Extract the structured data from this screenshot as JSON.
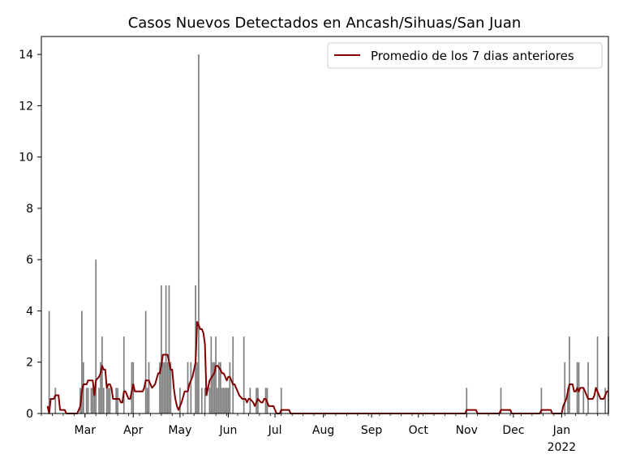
{
  "chart_data": {
    "type": "bar",
    "title": "Casos Nuevos Detectados en Ancash/Sihuas/San Juan",
    "xlabel": "",
    "ylabel": "",
    "x_range": [
      "2021-02-01",
      "2022-01-31"
    ],
    "ylim": [
      0,
      14.7
    ],
    "yticks": [
      0,
      2,
      4,
      6,
      8,
      10,
      12,
      14
    ],
    "xticks": [
      {
        "date": "2021-03-01",
        "label": "Mar"
      },
      {
        "date": "2021-04-01",
        "label": "Apr"
      },
      {
        "date": "2021-05-01",
        "label": "May"
      },
      {
        "date": "2021-06-01",
        "label": "Jun"
      },
      {
        "date": "2021-07-01",
        "label": "Jul"
      },
      {
        "date": "2021-08-01",
        "label": "Aug"
      },
      {
        "date": "2021-09-01",
        "label": "Sep"
      },
      {
        "date": "2021-10-01",
        "label": "Oct"
      },
      {
        "date": "2021-11-01",
        "label": "Nov"
      },
      {
        "date": "2021-12-01",
        "label": "Dec"
      },
      {
        "date": "2022-01-01",
        "label": "Jan",
        "sublabel": "2022"
      }
    ],
    "bar_color": "#808080",
    "bars": [
      [
        "2021-02-06",
        4
      ],
      [
        "2021-02-10",
        1
      ],
      [
        "2021-02-26",
        1
      ],
      [
        "2021-02-27",
        4
      ],
      [
        "2021-02-28",
        2
      ],
      [
        "2021-03-02",
        1
      ],
      [
        "2021-03-03",
        1
      ],
      [
        "2021-03-05",
        1
      ],
      [
        "2021-03-06",
        1
      ],
      [
        "2021-03-07",
        1
      ],
      [
        "2021-03-08",
        6
      ],
      [
        "2021-03-10",
        1
      ],
      [
        "2021-03-11",
        2
      ],
      [
        "2021-03-12",
        3
      ],
      [
        "2021-03-13",
        1
      ],
      [
        "2021-03-15",
        1
      ],
      [
        "2021-03-16",
        1
      ],
      [
        "2021-03-17",
        1
      ],
      [
        "2021-03-21",
        1
      ],
      [
        "2021-03-22",
        1
      ],
      [
        "2021-03-26",
        3
      ],
      [
        "2021-03-31",
        2
      ],
      [
        "2021-04-01",
        2
      ],
      [
        "2021-04-09",
        4
      ],
      [
        "2021-04-10",
        1
      ],
      [
        "2021-04-11",
        2
      ],
      [
        "2021-04-18",
        2
      ],
      [
        "2021-04-19",
        5
      ],
      [
        "2021-04-20",
        2
      ],
      [
        "2021-04-21",
        2
      ],
      [
        "2021-04-22",
        5
      ],
      [
        "2021-04-23",
        2
      ],
      [
        "2021-04-24",
        5
      ],
      [
        "2021-04-25",
        2
      ],
      [
        "2021-05-01",
        1
      ],
      [
        "2021-05-06",
        2
      ],
      [
        "2021-05-08",
        2
      ],
      [
        "2021-05-11",
        5
      ],
      [
        "2021-05-12",
        2
      ],
      [
        "2021-05-13",
        14
      ],
      [
        "2021-05-15",
        1
      ],
      [
        "2021-05-17",
        1
      ],
      [
        "2021-05-20",
        1
      ],
      [
        "2021-05-21",
        3
      ],
      [
        "2021-05-22",
        2
      ],
      [
        "2021-05-23",
        2
      ],
      [
        "2021-05-24",
        3
      ],
      [
        "2021-05-25",
        1
      ],
      [
        "2021-05-26",
        2
      ],
      [
        "2021-05-27",
        2
      ],
      [
        "2021-05-28",
        1
      ],
      [
        "2021-05-29",
        1
      ],
      [
        "2021-05-30",
        1
      ],
      [
        "2021-05-31",
        1
      ],
      [
        "2021-06-01",
        1
      ],
      [
        "2021-06-02",
        2
      ],
      [
        "2021-06-04",
        3
      ],
      [
        "2021-06-11",
        3
      ],
      [
        "2021-06-15",
        1
      ],
      [
        "2021-06-19",
        1
      ],
      [
        "2021-06-20",
        1
      ],
      [
        "2021-06-25",
        1
      ],
      [
        "2021-06-26",
        1
      ],
      [
        "2021-07-05",
        1
      ],
      [
        "2021-11-01",
        1
      ],
      [
        "2021-11-23",
        1
      ],
      [
        "2021-12-19",
        1
      ],
      [
        "2022-01-03",
        2
      ],
      [
        "2022-01-05",
        1
      ],
      [
        "2022-01-06",
        3
      ],
      [
        "2022-01-11",
        2
      ],
      [
        "2022-01-12",
        2
      ],
      [
        "2022-01-15",
        1
      ],
      [
        "2022-01-18",
        2
      ],
      [
        "2022-01-24",
        3
      ],
      [
        "2022-01-29",
        1
      ],
      [
        "2022-01-31",
        3
      ]
    ],
    "series": [
      {
        "name": "Promedio de los 7 dias anteriores",
        "color": "#800000",
        "points": [
          [
            "2021-02-05",
            0.29
          ],
          [
            "2021-02-06",
            0
          ],
          [
            "2021-02-07",
            0.57
          ],
          [
            "2021-02-09",
            0.57
          ],
          [
            "2021-02-10",
            0.71
          ],
          [
            "2021-02-12",
            0.71
          ],
          [
            "2021-02-13",
            0.14
          ],
          [
            "2021-02-16",
            0.14
          ],
          [
            "2021-02-17",
            0
          ],
          [
            "2021-02-24",
            0
          ],
          [
            "2021-02-25",
            0.14
          ],
          [
            "2021-02-26",
            0.29
          ],
          [
            "2021-02-27",
            0.86
          ],
          [
            "2021-02-28",
            1.14
          ],
          [
            "2021-03-02",
            1.14
          ],
          [
            "2021-03-03",
            1.29
          ],
          [
            "2021-03-06",
            1.29
          ],
          [
            "2021-03-07",
            0.71
          ],
          [
            "2021-03-08",
            1.29
          ],
          [
            "2021-03-10",
            1.43
          ],
          [
            "2021-03-11",
            1.57
          ],
          [
            "2021-03-12",
            1.86
          ],
          [
            "2021-03-13",
            1.71
          ],
          [
            "2021-03-14",
            1.71
          ],
          [
            "2021-03-15",
            1.0
          ],
          [
            "2021-03-16",
            1.14
          ],
          [
            "2021-03-17",
            1.14
          ],
          [
            "2021-03-18",
            1.0
          ],
          [
            "2021-03-19",
            0.57
          ],
          [
            "2021-03-23",
            0.57
          ],
          [
            "2021-03-24",
            0.43
          ],
          [
            "2021-03-25",
            0.43
          ],
          [
            "2021-03-26",
            0.86
          ],
          [
            "2021-03-27",
            0.86
          ],
          [
            "2021-03-29",
            0.57
          ],
          [
            "2021-03-30",
            0.57
          ],
          [
            "2021-03-31",
            0.86
          ],
          [
            "2021-04-01",
            1.14
          ],
          [
            "2021-04-02",
            0.86
          ],
          [
            "2021-04-07",
            0.86
          ],
          [
            "2021-04-08",
            1.0
          ],
          [
            "2021-04-09",
            1.29
          ],
          [
            "2021-04-11",
            1.29
          ],
          [
            "2021-04-13",
            1.0
          ],
          [
            "2021-04-15",
            1.14
          ],
          [
            "2021-04-17",
            1.57
          ],
          [
            "2021-04-18",
            1.57
          ],
          [
            "2021-04-19",
            1.86
          ],
          [
            "2021-04-20",
            2.29
          ],
          [
            "2021-04-23",
            2.29
          ],
          [
            "2021-04-24",
            2.0
          ],
          [
            "2021-04-25",
            1.71
          ],
          [
            "2021-04-26",
            1.71
          ],
          [
            "2021-04-27",
            1.0
          ],
          [
            "2021-04-28",
            0.57
          ],
          [
            "2021-04-29",
            0.29
          ],
          [
            "2021-04-30",
            0.14
          ],
          [
            "2021-05-02",
            0.43
          ],
          [
            "2021-05-04",
            0.86
          ],
          [
            "2021-05-06",
            0.86
          ],
          [
            "2021-05-07",
            1.14
          ],
          [
            "2021-05-09",
            1.43
          ],
          [
            "2021-05-10",
            1.71
          ],
          [
            "2021-05-11",
            2.0
          ],
          [
            "2021-05-12",
            3.57
          ],
          [
            "2021-05-13",
            3.43
          ],
          [
            "2021-05-14",
            3.29
          ],
          [
            "2021-05-15",
            3.29
          ],
          [
            "2021-05-16",
            3.14
          ],
          [
            "2021-05-17",
            2.71
          ],
          [
            "2021-05-18",
            0.71
          ],
          [
            "2021-05-20",
            1.29
          ],
          [
            "2021-05-23",
            1.57
          ],
          [
            "2021-05-24",
            1.86
          ],
          [
            "2021-05-25",
            1.86
          ],
          [
            "2021-05-27",
            1.71
          ],
          [
            "2021-05-28",
            1.57
          ],
          [
            "2021-05-29",
            1.57
          ],
          [
            "2021-05-30",
            1.43
          ],
          [
            "2021-05-31",
            1.29
          ],
          [
            "2021-06-01",
            1.43
          ],
          [
            "2021-06-02",
            1.43
          ],
          [
            "2021-06-03",
            1.29
          ],
          [
            "2021-06-04",
            1.14
          ],
          [
            "2021-06-05",
            1.14
          ],
          [
            "2021-06-06",
            1.0
          ],
          [
            "2021-06-07",
            0.86
          ],
          [
            "2021-06-08",
            0.71
          ],
          [
            "2021-06-10",
            0.57
          ],
          [
            "2021-06-12",
            0.57
          ],
          [
            "2021-06-13",
            0.43
          ],
          [
            "2021-06-14",
            0.57
          ],
          [
            "2021-06-15",
            0.57
          ],
          [
            "2021-06-17",
            0.43
          ],
          [
            "2021-06-18",
            0.29
          ],
          [
            "2021-06-19",
            0.43
          ],
          [
            "2021-06-20",
            0.57
          ],
          [
            "2021-06-22",
            0.43
          ],
          [
            "2021-06-23",
            0.43
          ],
          [
            "2021-06-24",
            0.57
          ],
          [
            "2021-06-25",
            0.57
          ],
          [
            "2021-06-26",
            0.43
          ],
          [
            "2021-06-27",
            0.29
          ],
          [
            "2021-06-30",
            0.29
          ],
          [
            "2021-07-01",
            0.14
          ],
          [
            "2021-07-02",
            0
          ],
          [
            "2021-07-04",
            0
          ],
          [
            "2021-07-05",
            0.14
          ],
          [
            "2021-07-10",
            0.14
          ],
          [
            "2021-07-11",
            0
          ],
          [
            "2021-10-31",
            0
          ],
          [
            "2021-11-01",
            0.14
          ],
          [
            "2021-11-07",
            0.14
          ],
          [
            "2021-11-08",
            0
          ],
          [
            "2021-11-22",
            0
          ],
          [
            "2021-11-23",
            0.14
          ],
          [
            "2021-11-29",
            0.14
          ],
          [
            "2021-11-30",
            0
          ],
          [
            "2021-12-18",
            0
          ],
          [
            "2021-12-19",
            0.14
          ],
          [
            "2021-12-25",
            0.14
          ],
          [
            "2021-12-26",
            0
          ],
          [
            "2022-01-01",
            0
          ],
          [
            "2022-01-02",
            0.29
          ],
          [
            "2022-01-03",
            0.43
          ],
          [
            "2022-01-04",
            0.57
          ],
          [
            "2022-01-05",
            0.86
          ],
          [
            "2022-01-06",
            1.14
          ],
          [
            "2022-01-08",
            1.14
          ],
          [
            "2022-01-09",
            0.86
          ],
          [
            "2022-01-10",
            0.86
          ],
          [
            "2022-01-11",
            1.0
          ],
          [
            "2022-01-12",
            0.86
          ],
          [
            "2022-01-13",
            1.0
          ],
          [
            "2022-01-15",
            1.0
          ],
          [
            "2022-01-16",
            0.86
          ],
          [
            "2022-01-17",
            0.71
          ],
          [
            "2022-01-18",
            0.57
          ],
          [
            "2022-01-21",
            0.57
          ],
          [
            "2022-01-22",
            0.71
          ],
          [
            "2022-01-23",
            1.0
          ],
          [
            "2022-01-24",
            0.86
          ],
          [
            "2022-01-25",
            0.71
          ],
          [
            "2022-01-26",
            0.57
          ],
          [
            "2022-01-28",
            0.57
          ],
          [
            "2022-01-29",
            0.71
          ],
          [
            "2022-01-30",
            0.86
          ],
          [
            "2022-01-31",
            0.86
          ]
        ]
      }
    ],
    "legend": {
      "position": "top-right"
    },
    "grid": false
  }
}
